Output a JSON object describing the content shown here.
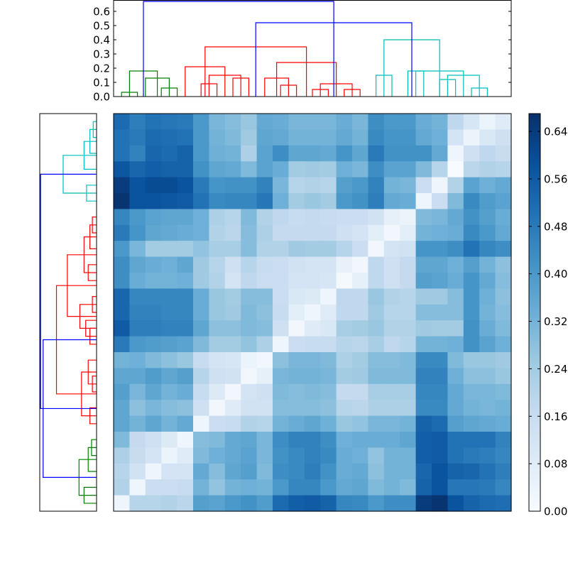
{
  "chart_data": {
    "type": "heatmap",
    "title": "",
    "colormap": "Blues",
    "n": 25,
    "heatmap_range": [
      0.0,
      0.67
    ],
    "colorbar": {
      "ticks": [
        0.0,
        0.08,
        0.16,
        0.24,
        0.32,
        0.4,
        0.48,
        0.56,
        0.64
      ],
      "tick_labels": [
        "0.00",
        "0.08",
        "0.16",
        "0.24",
        "0.32",
        "0.40",
        "0.48",
        "0.56",
        "0.64"
      ]
    },
    "top_dendrogram": {
      "yticks": [
        0.0,
        0.1,
        0.2,
        0.3,
        0.4,
        0.5,
        0.6
      ],
      "tick_labels": [
        "0.0",
        "0.1",
        "0.2",
        "0.3",
        "0.4",
        "0.5",
        "0.6"
      ],
      "ylim": [
        0.0,
        0.68
      ],
      "cluster_colors": {
        "green": "#008000",
        "red": "#ff0000",
        "cyan": "#00bfbf",
        "root": "#0000ff"
      },
      "links": [
        {
          "x1": 0,
          "x2": 1,
          "h": 0.03,
          "c": "green"
        },
        {
          "x1": 2.5,
          "x2": 3.5,
          "h": 0.06,
          "c": "green"
        },
        {
          "x1": 1.5,
          "x2": 3.0,
          "h": 0.13,
          "c": "green"
        },
        {
          "x1": 0.5,
          "x2": 2.25,
          "h": 0.18,
          "c": "green"
        },
        {
          "x1": 5,
          "x2": 6,
          "h": 0.09,
          "c": "red"
        },
        {
          "x1": 7,
          "x2": 8,
          "h": 0.13,
          "c": "red"
        },
        {
          "x1": 5.5,
          "x2": 7.5,
          "h": 0.15,
          "c": "red"
        },
        {
          "x1": 4,
          "x2": 6.5,
          "h": 0.21,
          "c": "red"
        },
        {
          "x1": 10,
          "x2": 11,
          "h": 0.08,
          "c": "red"
        },
        {
          "x1": 9,
          "x2": 10.5,
          "h": 0.13,
          "c": "red"
        },
        {
          "x1": 12,
          "x2": 13,
          "h": 0.05,
          "c": "red"
        },
        {
          "x1": 14,
          "x2": 15,
          "h": 0.05,
          "c": "red"
        },
        {
          "x1": 12.5,
          "x2": 14.5,
          "h": 0.09,
          "c": "red"
        },
        {
          "x1": 9.75,
          "x2": 13.5,
          "h": 0.24,
          "c": "red"
        },
        {
          "x1": 5.25,
          "x2": 11.625,
          "h": 0.35,
          "c": "red"
        },
        {
          "x1": 16,
          "x2": 17,
          "h": 0.15,
          "c": "cyan"
        },
        {
          "x1": 18,
          "x2": 19,
          "h": 0.18,
          "c": "cyan"
        },
        {
          "x1": 20,
          "x2": 21,
          "h": 0.12,
          "c": "cyan"
        },
        {
          "x1": 22,
          "x2": 23,
          "h": 0.06,
          "c": "cyan"
        },
        {
          "x1": 20.5,
          "x2": 22.5,
          "h": 0.15,
          "c": "cyan"
        },
        {
          "x1": 18.5,
          "x2": 21.5,
          "h": 0.18,
          "c": "cyan"
        },
        {
          "x1": 16.5,
          "x2": 20,
          "h": 0.4,
          "c": "cyan"
        },
        {
          "x1": 8.4375,
          "x2": 18.25,
          "h": 0.52,
          "c": "root"
        },
        {
          "x1": 1.375,
          "x2": 13.34375,
          "h": 0.67,
          "c": "root"
        }
      ]
    },
    "left_dendrogram": {
      "xlim": [
        0.0,
        0.68
      ],
      "links": [
        {
          "y1": 0,
          "y2": 1,
          "h": 0.04,
          "c": "cyan"
        },
        {
          "y1": 0.5,
          "y2": 2,
          "h": 0.08,
          "c": "cyan"
        },
        {
          "y1": 1.25,
          "y2": 3,
          "h": 0.15,
          "c": "cyan"
        },
        {
          "y1": 4,
          "y2": 5,
          "h": 0.12,
          "c": "cyan"
        },
        {
          "y1": 2.125,
          "y2": 4.5,
          "h": 0.4,
          "c": "cyan"
        },
        {
          "y1": 6,
          "y2": 7,
          "h": 0.05,
          "c": "red"
        },
        {
          "y1": 6.5,
          "y2": 8,
          "h": 0.08,
          "c": "red"
        },
        {
          "y1": 9,
          "y2": 10,
          "h": 0.1,
          "c": "red"
        },
        {
          "y1": 7.25,
          "y2": 9.5,
          "h": 0.15,
          "c": "red"
        },
        {
          "y1": 11,
          "y2": 12,
          "h": 0.05,
          "c": "red"
        },
        {
          "y1": 13,
          "y2": 14,
          "h": 0.08,
          "c": "red"
        },
        {
          "y1": 12.5,
          "y2": 13.5,
          "h": 0.13,
          "c": "red"
        },
        {
          "y1": 11.5,
          "y2": 13,
          "h": 0.2,
          "c": "red"
        },
        {
          "y1": 8.375,
          "y2": 12.25,
          "h": 0.35,
          "c": "red"
        },
        {
          "y1": 16,
          "y2": 17,
          "h": 0.05,
          "c": "red"
        },
        {
          "y1": 15,
          "y2": 16.5,
          "h": 0.1,
          "c": "red"
        },
        {
          "y1": 18,
          "y2": 19,
          "h": 0.08,
          "c": "red"
        },
        {
          "y1": 15.75,
          "y2": 18.5,
          "h": 0.18,
          "c": "red"
        },
        {
          "y1": 10.3125,
          "y2": 17.125,
          "h": 0.48,
          "c": "red"
        },
        {
          "y1": 20,
          "y2": 21,
          "h": 0.06,
          "c": "green"
        },
        {
          "y1": 20.5,
          "y2": 22,
          "h": 0.1,
          "c": "green"
        },
        {
          "y1": 23,
          "y2": 24,
          "h": 0.15,
          "c": "green"
        },
        {
          "y1": 21.25,
          "y2": 23.5,
          "h": 0.21,
          "c": "green"
        },
        {
          "y1": 13.71875,
          "y2": 22.375,
          "h": 0.64,
          "c": "root"
        },
        {
          "y1": 3.3125,
          "y2": 18.046875,
          "h": 0.67,
          "c": "root"
        }
      ]
    },
    "values": [
      [
        0.52,
        0.47,
        0.5,
        0.49,
        0.48,
        0.4,
        0.31,
        0.29,
        0.26,
        0.35,
        0.34,
        0.31,
        0.31,
        0.31,
        0.34,
        0.31,
        0.43,
        0.4,
        0.4,
        0.34,
        0.32,
        0.18,
        0.11,
        0.04,
        0.08
      ],
      [
        0.5,
        0.48,
        0.52,
        0.51,
        0.5,
        0.4,
        0.32,
        0.3,
        0.25,
        0.36,
        0.35,
        0.32,
        0.32,
        0.32,
        0.35,
        0.32,
        0.44,
        0.41,
        0.41,
        0.35,
        0.33,
        0.12,
        0.04,
        0.1,
        0.14
      ],
      [
        0.5,
        0.46,
        0.53,
        0.52,
        0.54,
        0.4,
        0.33,
        0.32,
        0.22,
        0.37,
        0.43,
        0.36,
        0.36,
        0.35,
        0.41,
        0.36,
        0.48,
        0.42,
        0.42,
        0.42,
        0.35,
        0.03,
        0.14,
        0.18,
        0.16
      ],
      [
        0.57,
        0.53,
        0.55,
        0.54,
        0.54,
        0.42,
        0.36,
        0.35,
        0.3,
        0.37,
        0.34,
        0.24,
        0.25,
        0.24,
        0.33,
        0.31,
        0.43,
        0.37,
        0.37,
        0.3,
        0.2,
        0.0,
        0.19,
        0.21,
        0.2
      ],
      [
        0.64,
        0.58,
        0.6,
        0.6,
        0.58,
        0.48,
        0.41,
        0.42,
        0.42,
        0.46,
        0.31,
        0.2,
        0.21,
        0.2,
        0.38,
        0.4,
        0.46,
        0.32,
        0.31,
        0.15,
        0.03,
        0.21,
        0.37,
        0.33,
        0.35
      ],
      [
        0.66,
        0.58,
        0.58,
        0.57,
        0.56,
        0.5,
        0.44,
        0.45,
        0.45,
        0.49,
        0.33,
        0.24,
        0.26,
        0.24,
        0.4,
        0.42,
        0.47,
        0.35,
        0.34,
        0.03,
        0.15,
        0.3,
        0.44,
        0.39,
        0.37
      ],
      [
        0.45,
        0.4,
        0.37,
        0.36,
        0.36,
        0.33,
        0.22,
        0.2,
        0.3,
        0.21,
        0.18,
        0.16,
        0.17,
        0.16,
        0.15,
        0.15,
        0.13,
        0.06,
        0.04,
        0.3,
        0.31,
        0.35,
        0.42,
        0.38,
        0.34
      ],
      [
        0.48,
        0.41,
        0.36,
        0.35,
        0.34,
        0.33,
        0.21,
        0.19,
        0.29,
        0.22,
        0.17,
        0.17,
        0.17,
        0.17,
        0.14,
        0.12,
        0.07,
        0.02,
        0.07,
        0.32,
        0.33,
        0.34,
        0.44,
        0.4,
        0.35
      ],
      [
        0.4,
        0.31,
        0.24,
        0.24,
        0.24,
        0.27,
        0.23,
        0.23,
        0.29,
        0.21,
        0.21,
        0.25,
        0.24,
        0.24,
        0.2,
        0.15,
        0.02,
        0.12,
        0.13,
        0.41,
        0.41,
        0.43,
        0.5,
        0.45,
        0.43
      ],
      [
        0.43,
        0.36,
        0.34,
        0.33,
        0.36,
        0.25,
        0.2,
        0.14,
        0.2,
        0.16,
        0.15,
        0.13,
        0.12,
        0.12,
        0.05,
        0.02,
        0.18,
        0.14,
        0.17,
        0.36,
        0.36,
        0.33,
        0.38,
        0.32,
        0.28
      ],
      [
        0.43,
        0.34,
        0.32,
        0.32,
        0.33,
        0.25,
        0.21,
        0.12,
        0.18,
        0.15,
        0.15,
        0.12,
        0.12,
        0.11,
        0.01,
        0.06,
        0.18,
        0.14,
        0.17,
        0.38,
        0.37,
        0.34,
        0.41,
        0.35,
        0.29
      ],
      [
        0.53,
        0.45,
        0.45,
        0.45,
        0.45,
        0.34,
        0.26,
        0.24,
        0.29,
        0.29,
        0.15,
        0.1,
        0.09,
        0.03,
        0.18,
        0.18,
        0.26,
        0.21,
        0.2,
        0.25,
        0.25,
        0.29,
        0.41,
        0.33,
        0.28
      ],
      [
        0.53,
        0.46,
        0.46,
        0.45,
        0.45,
        0.34,
        0.26,
        0.25,
        0.3,
        0.28,
        0.16,
        0.07,
        0.03,
        0.08,
        0.18,
        0.18,
        0.25,
        0.2,
        0.2,
        0.29,
        0.29,
        0.29,
        0.41,
        0.32,
        0.29
      ],
      [
        0.56,
        0.47,
        0.47,
        0.46,
        0.46,
        0.36,
        0.28,
        0.28,
        0.3,
        0.29,
        0.14,
        0.02,
        0.08,
        0.1,
        0.23,
        0.24,
        0.26,
        0.21,
        0.21,
        0.25,
        0.24,
        0.24,
        0.42,
        0.34,
        0.3
      ],
      [
        0.48,
        0.4,
        0.39,
        0.38,
        0.37,
        0.3,
        0.24,
        0.24,
        0.27,
        0.22,
        0.03,
        0.15,
        0.16,
        0.16,
        0.2,
        0.19,
        0.23,
        0.18,
        0.2,
        0.32,
        0.32,
        0.33,
        0.42,
        0.37,
        0.33
      ],
      [
        0.32,
        0.33,
        0.3,
        0.28,
        0.26,
        0.16,
        0.12,
        0.11,
        0.04,
        0.02,
        0.28,
        0.31,
        0.31,
        0.3,
        0.22,
        0.24,
        0.29,
        0.29,
        0.3,
        0.44,
        0.44,
        0.3,
        0.26,
        0.26,
        0.25
      ],
      [
        0.36,
        0.36,
        0.39,
        0.36,
        0.38,
        0.2,
        0.14,
        0.13,
        0.02,
        0.06,
        0.31,
        0.32,
        0.32,
        0.31,
        0.24,
        0.25,
        0.3,
        0.3,
        0.3,
        0.46,
        0.46,
        0.33,
        0.28,
        0.28,
        0.26
      ],
      [
        0.38,
        0.31,
        0.36,
        0.32,
        0.34,
        0.16,
        0.09,
        0.02,
        0.12,
        0.14,
        0.3,
        0.29,
        0.3,
        0.29,
        0.17,
        0.17,
        0.23,
        0.23,
        0.23,
        0.45,
        0.45,
        0.35,
        0.31,
        0.31,
        0.3
      ],
      [
        0.36,
        0.28,
        0.31,
        0.29,
        0.28,
        0.14,
        0.02,
        0.08,
        0.13,
        0.13,
        0.29,
        0.29,
        0.29,
        0.28,
        0.2,
        0.19,
        0.22,
        0.22,
        0.22,
        0.44,
        0.44,
        0.35,
        0.32,
        0.31,
        0.32
      ],
      [
        0.36,
        0.32,
        0.36,
        0.32,
        0.35,
        0.03,
        0.15,
        0.16,
        0.21,
        0.2,
        0.32,
        0.34,
        0.36,
        0.33,
        0.26,
        0.27,
        0.31,
        0.31,
        0.32,
        0.54,
        0.52,
        0.38,
        0.36,
        0.35,
        0.34
      ],
      [
        0.3,
        0.17,
        0.14,
        0.09,
        0.03,
        0.29,
        0.3,
        0.35,
        0.36,
        0.31,
        0.43,
        0.46,
        0.46,
        0.43,
        0.33,
        0.34,
        0.34,
        0.34,
        0.36,
        0.55,
        0.56,
        0.5,
        0.5,
        0.5,
        0.46
      ],
      [
        0.22,
        0.16,
        0.12,
        0.04,
        0.08,
        0.3,
        0.33,
        0.35,
        0.37,
        0.31,
        0.42,
        0.44,
        0.46,
        0.44,
        0.34,
        0.33,
        0.27,
        0.32,
        0.32,
        0.55,
        0.56,
        0.5,
        0.48,
        0.47,
        0.45
      ],
      [
        0.2,
        0.13,
        0.03,
        0.12,
        0.12,
        0.35,
        0.29,
        0.36,
        0.38,
        0.3,
        0.43,
        0.44,
        0.47,
        0.42,
        0.34,
        0.35,
        0.28,
        0.32,
        0.32,
        0.53,
        0.58,
        0.54,
        0.53,
        0.5,
        0.47
      ],
      [
        0.21,
        0.03,
        0.15,
        0.15,
        0.16,
        0.32,
        0.27,
        0.32,
        0.33,
        0.32,
        0.4,
        0.45,
        0.45,
        0.4,
        0.35,
        0.36,
        0.3,
        0.32,
        0.3,
        0.54,
        0.58,
        0.49,
        0.49,
        0.48,
        0.45
      ],
      [
        0.03,
        0.2,
        0.2,
        0.21,
        0.19,
        0.38,
        0.37,
        0.4,
        0.42,
        0.39,
        0.52,
        0.55,
        0.56,
        0.54,
        0.45,
        0.44,
        0.4,
        0.43,
        0.43,
        0.64,
        0.66,
        0.58,
        0.54,
        0.52,
        0.51
      ]
    ]
  }
}
